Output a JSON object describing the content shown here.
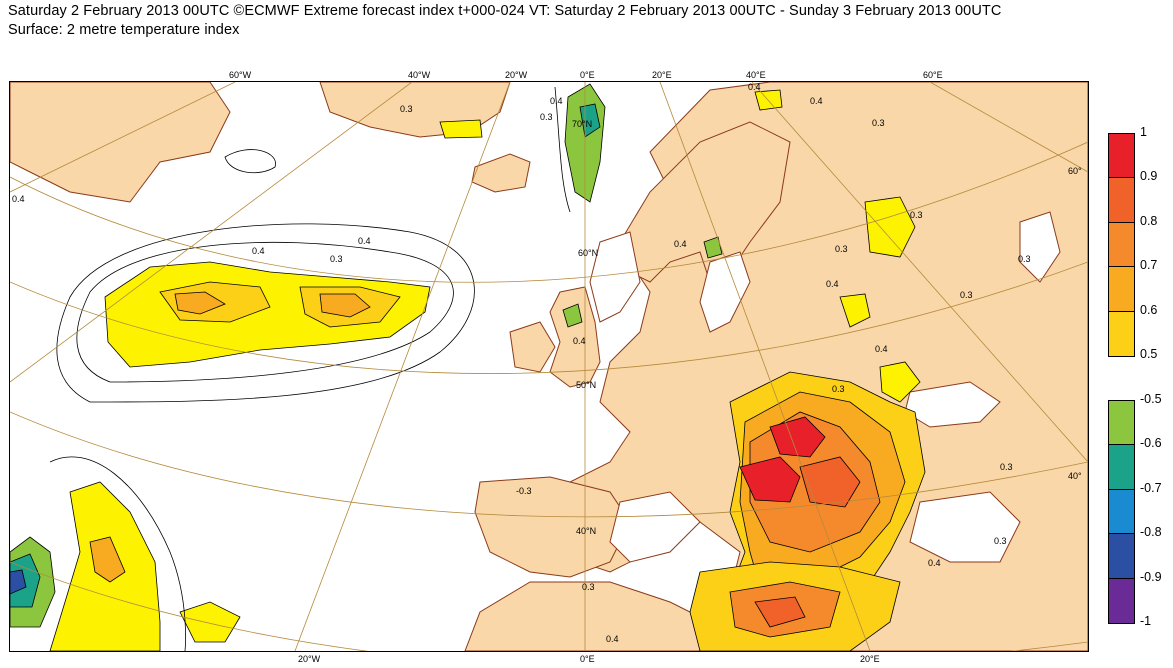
{
  "header": {
    "line1": "Saturday 2 February 2013 00UTC ©ECMWF Extreme forecast index t+000-024 VT: Saturday 2 February 2013 00UTC - Sunday 3 February 2013 00UTC",
    "line2": "Surface: 2 metre temperature index"
  },
  "map": {
    "top_longitudes": [
      "60°W",
      "40°W",
      "20°W",
      "0°E",
      "20°E",
      "40°E",
      "60°E"
    ],
    "bottom_longitudes": [
      "20°W",
      "0°E",
      "20°E"
    ],
    "right_latitudes": [
      "60°",
      "40°"
    ],
    "inner_latitudes": [
      "60°N",
      "50°N",
      "40°N"
    ],
    "contour_labels": [
      "0.3",
      "0.4",
      "0.3",
      "0.4",
      "0.3",
      "0.4",
      "0.3",
      "0.4",
      "0.3",
      "0.4",
      "0.3",
      "0.3",
      "0.4",
      "0.3",
      "0.4",
      "-0.3",
      "0.3",
      "0.4",
      "0.3",
      "0.3",
      "0.4",
      "0.4",
      "0.4",
      "0.3",
      "0.4",
      "70°N"
    ],
    "colors": {
      "land": "#f9d7a8",
      "coast": "#8b3a1a",
      "graticule": "#b58a3c",
      "sea": "#ffffff"
    }
  },
  "legend": {
    "positive": [
      {
        "label": "1",
        "color": "#e8202a"
      },
      {
        "label": "0.9",
        "color": "#f0622a"
      },
      {
        "label": "0.8",
        "color": "#f48a2c"
      },
      {
        "label": "0.7",
        "color": "#f8aa20"
      },
      {
        "label": "0.6",
        "color": "#fdd018"
      },
      {
        "label": "0.5",
        "color": "#fdf200"
      }
    ],
    "negative": [
      {
        "label": "-0.5",
        "color": "#8cc63f"
      },
      {
        "label": "-0.6",
        "color": "#1ba38a"
      },
      {
        "label": "-0.7",
        "color": "#1b8bd1"
      },
      {
        "label": "-0.8",
        "color": "#2b4fa3"
      },
      {
        "label": "-0.9",
        "color": "#6a2b96"
      },
      {
        "label": "-1",
        "color": "#ec1a80"
      }
    ]
  }
}
